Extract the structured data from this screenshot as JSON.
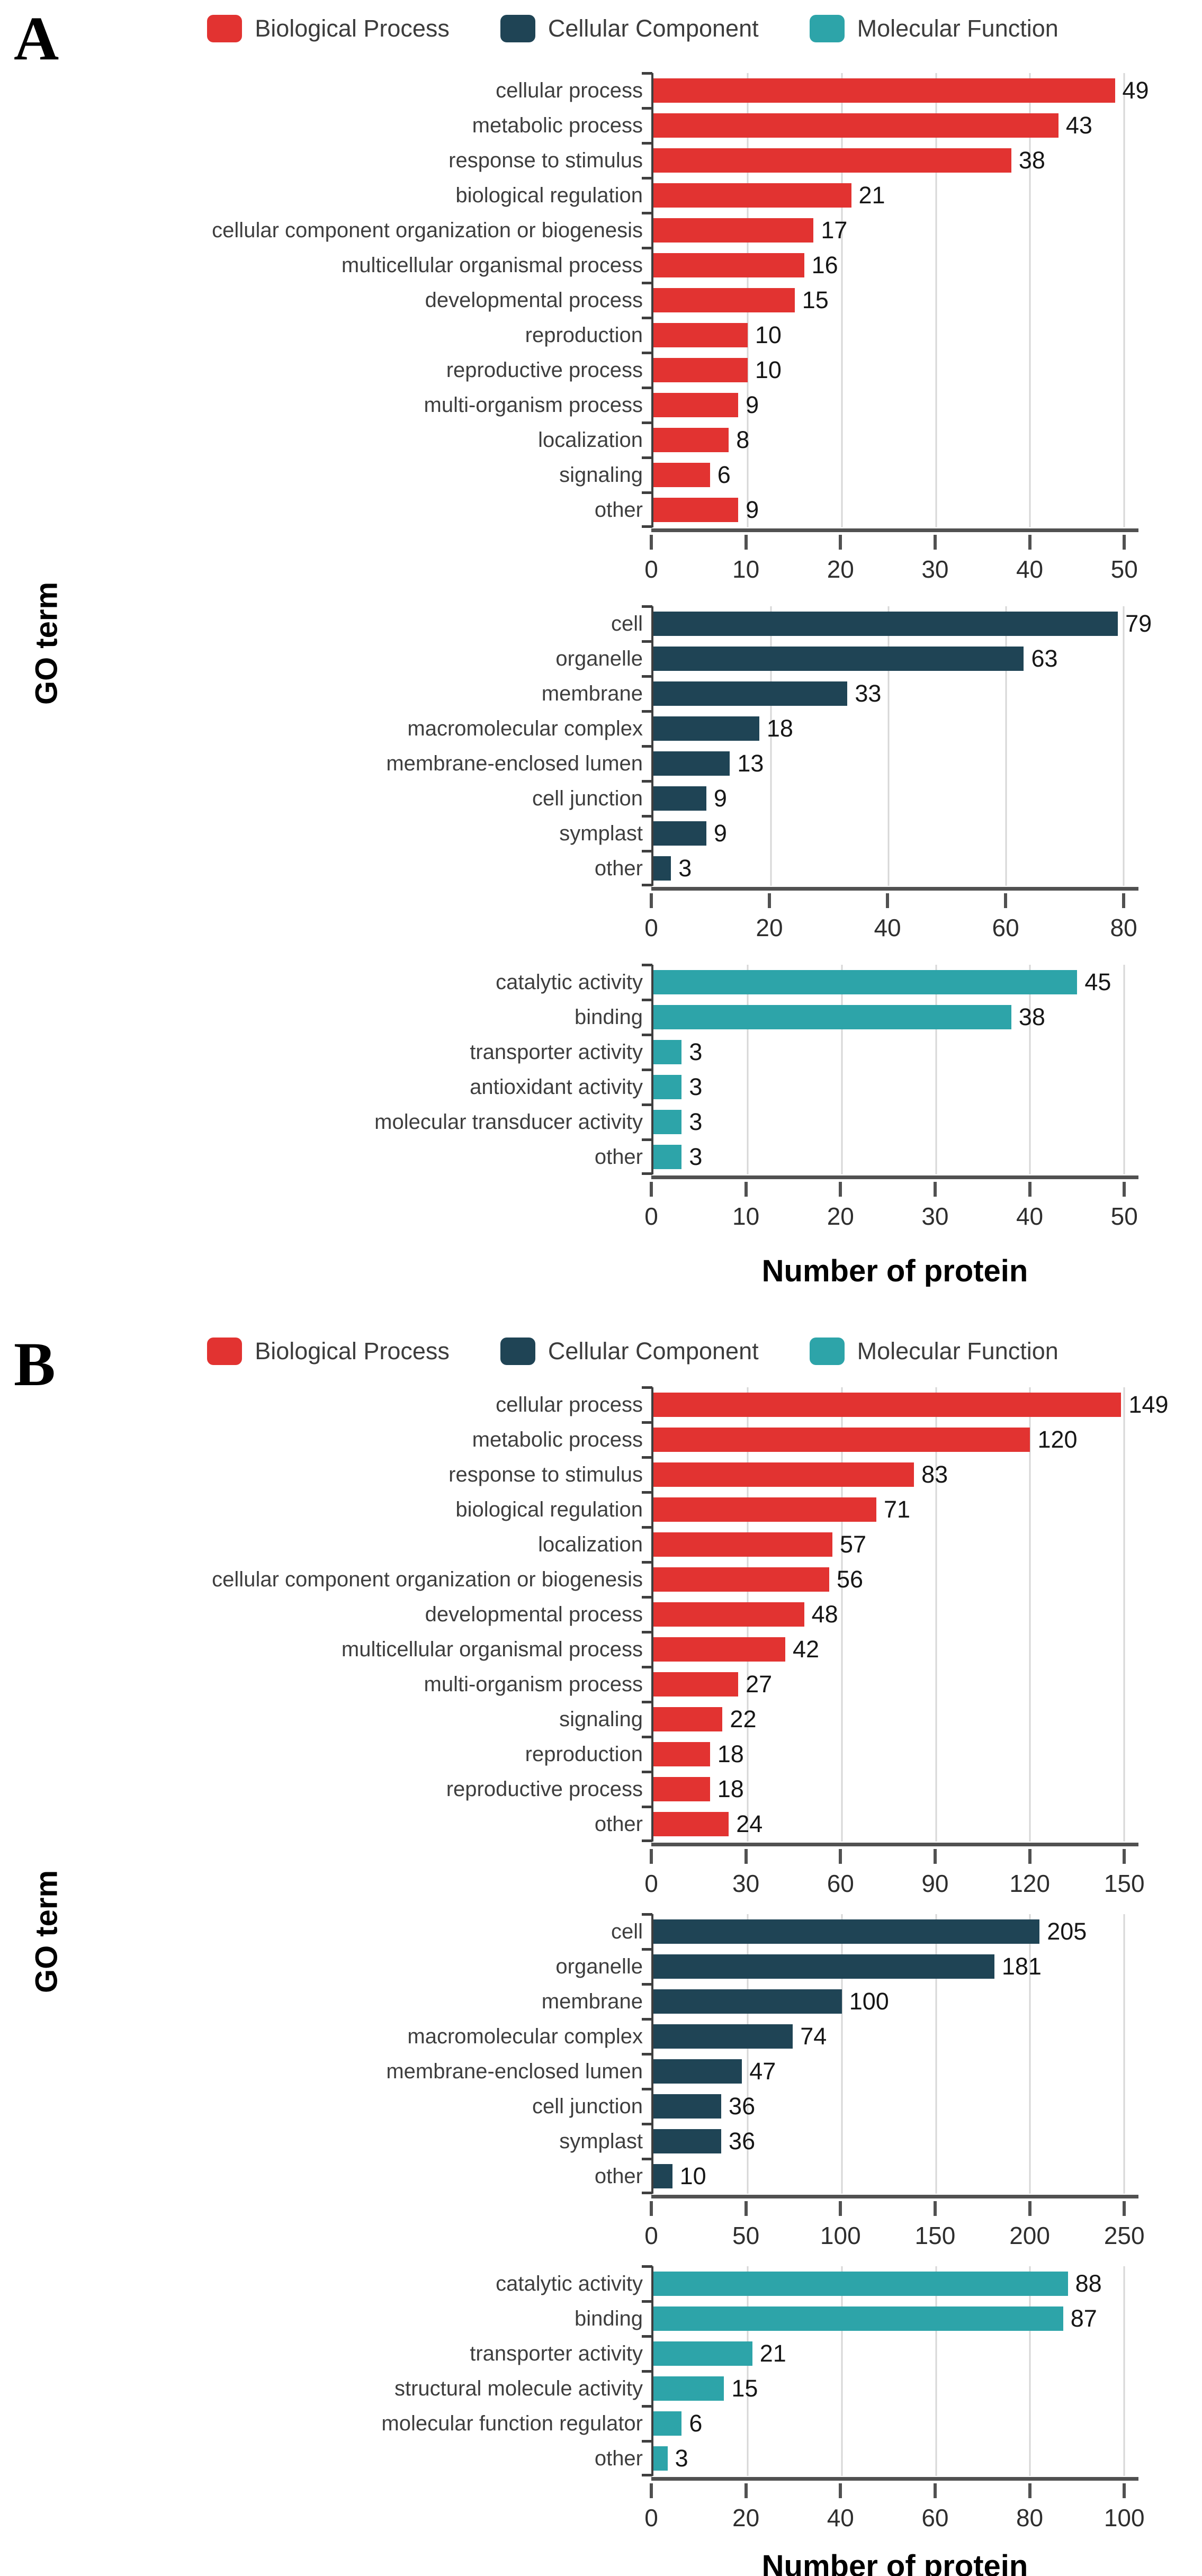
{
  "figure": {
    "ylabel": "GO term",
    "xlabel": "Number of protein",
    "legend": [
      {
        "label": "Biological Process",
        "color": "#e23331"
      },
      {
        "label": "Cellular Component",
        "color": "#1f4455"
      },
      {
        "label": "Molecular Function",
        "color": "#2da4a9"
      }
    ],
    "gridline_color": "#d7d7d7",
    "axis_color": "#515151"
  },
  "panels": [
    {
      "label": "A"
    },
    {
      "label": "B"
    }
  ],
  "chart_data": [
    {
      "panel": "A",
      "type": "bar",
      "orientation": "horizontal",
      "series": "Biological Process",
      "categories": [
        "cellular process",
        "metabolic process",
        "response to stimulus",
        "biological regulation",
        "cellular component organization or biogenesis",
        "multicellular organismal process",
        "developmental process",
        "reproduction",
        "reproductive process",
        "multi-organism process",
        "localization",
        "signaling",
        "other"
      ],
      "values": [
        49,
        43,
        38,
        21,
        17,
        16,
        15,
        10,
        10,
        9,
        8,
        6,
        9
      ],
      "xticks": [
        0,
        10,
        20,
        30,
        40,
        50
      ],
      "xlim": [
        0,
        51.5
      ],
      "grid": true
    },
    {
      "panel": "A",
      "type": "bar",
      "orientation": "horizontal",
      "series": "Cellular Component",
      "categories": [
        "cell",
        "organelle",
        "membrane",
        "macromolecular complex",
        "membrane-enclosed lumen",
        "cell junction",
        "symplast",
        "other"
      ],
      "values": [
        79,
        63,
        33,
        18,
        13,
        9,
        9,
        3
      ],
      "xticks": [
        0,
        20,
        40,
        60,
        80
      ],
      "xlim": [
        0,
        82.5
      ],
      "grid": true
    },
    {
      "panel": "A",
      "type": "bar",
      "orientation": "horizontal",
      "series": "Molecular Function",
      "categories": [
        "catalytic activity",
        "binding",
        "transporter activity",
        "antioxidant activity",
        "molecular transducer activity",
        "other"
      ],
      "values": [
        45,
        38,
        3,
        3,
        3,
        3
      ],
      "xticks": [
        0,
        10,
        20,
        30,
        40,
        50
      ],
      "xlim": [
        0,
        51.5
      ],
      "grid": true
    },
    {
      "panel": "B",
      "type": "bar",
      "orientation": "horizontal",
      "series": "Biological Process",
      "categories": [
        "cellular process",
        "metabolic process",
        "response to stimulus",
        "biological regulation",
        "localization",
        "cellular component organization or biogenesis",
        "developmental process",
        "multicellular organismal process",
        "multi-organism process",
        "signaling",
        "reproduction",
        "reproductive process",
        "other"
      ],
      "values": [
        149,
        120,
        83,
        71,
        57,
        56,
        48,
        42,
        27,
        22,
        18,
        18,
        24
      ],
      "xticks": [
        0,
        30,
        60,
        90,
        120,
        150
      ],
      "xlim": [
        0,
        154.5
      ],
      "grid": true
    },
    {
      "panel": "B",
      "type": "bar",
      "orientation": "horizontal",
      "series": "Cellular Component",
      "categories": [
        "cell",
        "organelle",
        "membrane",
        "macromolecular complex",
        "membrane-enclosed lumen",
        "cell junction",
        "symplast",
        "other"
      ],
      "values": [
        205,
        181,
        100,
        74,
        47,
        36,
        36,
        10
      ],
      "xticks": [
        0,
        50,
        100,
        150,
        200,
        250
      ],
      "xlim": [
        0,
        257.5
      ],
      "grid": true
    },
    {
      "panel": "B",
      "type": "bar",
      "orientation": "horizontal",
      "series": "Molecular Function",
      "categories": [
        "catalytic activity",
        "binding",
        "transporter activity",
        "structural molecule activity",
        "molecular function regulator",
        "other"
      ],
      "values": [
        88,
        87,
        21,
        15,
        6,
        3
      ],
      "xticks": [
        0,
        20,
        40,
        60,
        80,
        100
      ],
      "xlim": [
        0,
        103
      ],
      "grid": true
    }
  ]
}
